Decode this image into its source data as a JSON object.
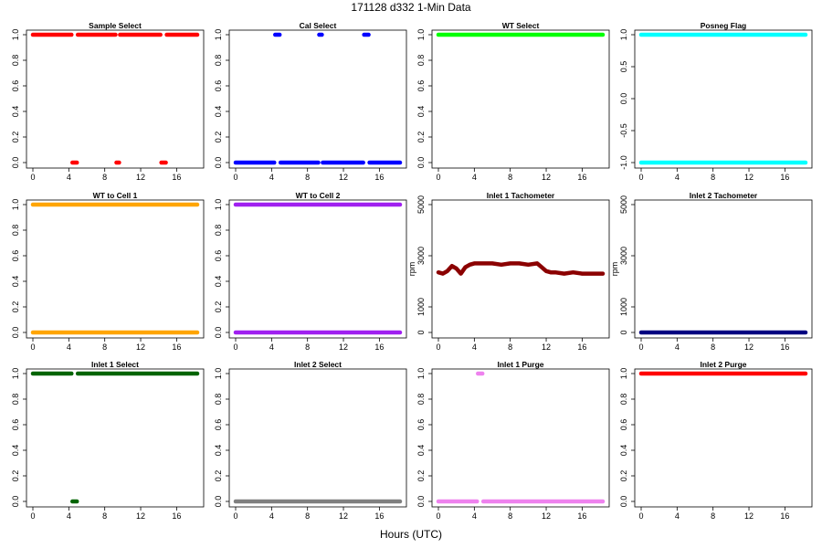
{
  "page": {
    "title": "171128   d332   1-Min Data",
    "xlabel": "Hours (UTC)"
  },
  "colors": {
    "red": "#ff0000",
    "blue": "#0000ff",
    "green": "#00ff00",
    "cyan": "#00ffff",
    "orange": "#ffa500",
    "purple": "#a020f0",
    "darkred": "#8b0000",
    "navy": "#000080",
    "darkgreen": "#006400",
    "gray": "#808080",
    "violet": "#ee82ee"
  },
  "chart_data": [
    {
      "type": "scatter",
      "title": "Sample Select",
      "color": "#ff0000",
      "xlim": [
        0,
        18.3
      ],
      "xticks": [
        0,
        4,
        8,
        12,
        16
      ],
      "ylim": [
        0,
        1
      ],
      "yticks": [
        0,
        0.2,
        0.4,
        0.6,
        0.8,
        1.0
      ],
      "ytick_labels": [
        "0.0",
        "0.2",
        "0.4",
        "0.6",
        "0.8",
        "1.0"
      ],
      "segments": [
        {
          "y": 1,
          "x": [
            0,
            4.3
          ]
        },
        {
          "y": 0,
          "x": [
            4.4,
            4.9
          ]
        },
        {
          "y": 1,
          "x": [
            5.0,
            9.2
          ]
        },
        {
          "y": 0,
          "x": [
            9.3,
            9.6
          ]
        },
        {
          "y": 1,
          "x": [
            9.7,
            14.2
          ]
        },
        {
          "y": 0,
          "x": [
            14.3,
            14.8
          ]
        },
        {
          "y": 1,
          "x": [
            14.9,
            18.3
          ]
        }
      ]
    },
    {
      "type": "scatter",
      "title": "Cal Select",
      "color": "#0000ff",
      "xlim": [
        0,
        18.3
      ],
      "xticks": [
        0,
        4,
        8,
        12,
        16
      ],
      "ylim": [
        0,
        1
      ],
      "yticks": [
        0,
        0.2,
        0.4,
        0.6,
        0.8,
        1.0
      ],
      "ytick_labels": [
        "0.0",
        "0.2",
        "0.4",
        "0.6",
        "0.8",
        "1.0"
      ],
      "segments": [
        {
          "y": 0,
          "x": [
            0,
            4.3
          ]
        },
        {
          "y": 1,
          "x": [
            4.4,
            4.9
          ]
        },
        {
          "y": 0,
          "x": [
            5.0,
            9.2
          ]
        },
        {
          "y": 1,
          "x": [
            9.3,
            9.6
          ]
        },
        {
          "y": 0,
          "x": [
            9.7,
            14.2
          ]
        },
        {
          "y": 1,
          "x": [
            14.3,
            14.8
          ]
        },
        {
          "y": 0,
          "x": [
            14.9,
            18.3
          ]
        }
      ]
    },
    {
      "type": "scatter",
      "title": "WT Select",
      "color": "#00ff00",
      "xlim": [
        0,
        18.3
      ],
      "xticks": [
        0,
        4,
        8,
        12,
        16
      ],
      "ylim": [
        0,
        1
      ],
      "yticks": [
        0,
        0.2,
        0.4,
        0.6,
        0.8,
        1.0
      ],
      "ytick_labels": [
        "0.0",
        "0.2",
        "0.4",
        "0.6",
        "0.8",
        "1.0"
      ],
      "segments": [
        {
          "y": 1,
          "x": [
            0,
            18.3
          ]
        }
      ]
    },
    {
      "type": "scatter",
      "title": "Posneg Flag",
      "color": "#00ffff",
      "xlim": [
        0,
        18.3
      ],
      "xticks": [
        0,
        4,
        8,
        12,
        16
      ],
      "ylim": [
        -1,
        1
      ],
      "yticks": [
        -1,
        -0.5,
        0,
        0.5,
        1
      ],
      "ytick_labels": [
        "-1.0",
        "-0.5",
        "0.0",
        "0.5",
        "1.0"
      ],
      "segments": [
        {
          "y": 1,
          "x": [
            0,
            18.3
          ]
        },
        {
          "y": -1,
          "x": [
            0,
            18.3
          ]
        }
      ]
    },
    {
      "type": "scatter",
      "title": "WT to Cell 1",
      "color": "#ffa500",
      "xlim": [
        0,
        18.3
      ],
      "xticks": [
        0,
        4,
        8,
        12,
        16
      ],
      "ylim": [
        0,
        1
      ],
      "yticks": [
        0,
        0.2,
        0.4,
        0.6,
        0.8,
        1.0
      ],
      "ytick_labels": [
        "0.0",
        "0.2",
        "0.4",
        "0.6",
        "0.8",
        "1.0"
      ],
      "segments": [
        {
          "y": 1,
          "x": [
            0,
            18.3
          ]
        },
        {
          "y": 0,
          "x": [
            0,
            18.3
          ]
        }
      ]
    },
    {
      "type": "scatter",
      "title": "WT to Cell 2",
      "color": "#a020f0",
      "xlim": [
        0,
        18.3
      ],
      "xticks": [
        0,
        4,
        8,
        12,
        16
      ],
      "ylim": [
        0,
        1
      ],
      "yticks": [
        0,
        0.2,
        0.4,
        0.6,
        0.8,
        1.0
      ],
      "ytick_labels": [
        "0.0",
        "0.2",
        "0.4",
        "0.6",
        "0.8",
        "1.0"
      ],
      "segments": [
        {
          "y": 1,
          "x": [
            0,
            18.3
          ]
        },
        {
          "y": 0,
          "x": [
            0,
            18.3
          ]
        }
      ]
    },
    {
      "type": "scatter",
      "title": "Inlet 1 Tachometer",
      "ylabel": "rpm",
      "color": "#8b0000",
      "xlim": [
        0,
        18.3
      ],
      "xticks": [
        0,
        4,
        8,
        12,
        16
      ],
      "ylim": [
        0,
        5000
      ],
      "yticks": [
        0,
        1000,
        3000,
        5000
      ],
      "ytick_labels": [
        "0",
        "1000",
        "3000",
        "5000"
      ],
      "line": {
        "x": [
          0,
          0.5,
          1,
          1.5,
          2,
          2.5,
          3,
          3.5,
          4,
          5,
          6,
          7,
          8,
          9,
          10,
          11,
          11.5,
          12,
          12.5,
          13,
          14,
          15,
          16,
          17,
          18,
          18.3
        ],
        "y": [
          2350,
          2300,
          2400,
          2600,
          2500,
          2300,
          2550,
          2650,
          2700,
          2700,
          2700,
          2650,
          2700,
          2700,
          2650,
          2700,
          2550,
          2400,
          2350,
          2350,
          2300,
          2350,
          2300,
          2300,
          2300,
          2300
        ]
      }
    },
    {
      "type": "scatter",
      "title": "Inlet 2 Tachometer",
      "ylabel": "rpm",
      "color": "#000080",
      "xlim": [
        0,
        18.3
      ],
      "xticks": [
        0,
        4,
        8,
        12,
        16
      ],
      "ylim": [
        0,
        5000
      ],
      "yticks": [
        0,
        1000,
        3000,
        5000
      ],
      "ytick_labels": [
        "0",
        "1000",
        "3000",
        "5000"
      ],
      "segments": [
        {
          "y": 0,
          "x": [
            0,
            18.3
          ]
        }
      ]
    },
    {
      "type": "scatter",
      "title": "Inlet 1 Select",
      "color": "#006400",
      "xlim": [
        0,
        18.3
      ],
      "xticks": [
        0,
        4,
        8,
        12,
        16
      ],
      "ylim": [
        0,
        1
      ],
      "yticks": [
        0,
        0.2,
        0.4,
        0.6,
        0.8,
        1.0
      ],
      "ytick_labels": [
        "0.0",
        "0.2",
        "0.4",
        "0.6",
        "0.8",
        "1.0"
      ],
      "segments": [
        {
          "y": 1,
          "x": [
            0,
            4.3
          ]
        },
        {
          "y": 0,
          "x": [
            4.4,
            4.9
          ]
        },
        {
          "y": 1,
          "x": [
            5.0,
            18.3
          ]
        }
      ]
    },
    {
      "type": "scatter",
      "title": "Inlet 2 Select",
      "color": "#808080",
      "xlim": [
        0,
        18.3
      ],
      "xticks": [
        0,
        4,
        8,
        12,
        16
      ],
      "ylim": [
        0,
        1
      ],
      "yticks": [
        0,
        0.2,
        0.4,
        0.6,
        0.8,
        1.0
      ],
      "ytick_labels": [
        "0.0",
        "0.2",
        "0.4",
        "0.6",
        "0.8",
        "1.0"
      ],
      "segments": [
        {
          "y": 0,
          "x": [
            0,
            18.3
          ]
        }
      ]
    },
    {
      "type": "scatter",
      "title": "Inlet 1 Purge",
      "color": "#ee82ee",
      "xlim": [
        0,
        18.3
      ],
      "xticks": [
        0,
        4,
        8,
        12,
        16
      ],
      "ylim": [
        0,
        1
      ],
      "yticks": [
        0,
        0.2,
        0.4,
        0.6,
        0.8,
        1.0
      ],
      "ytick_labels": [
        "0.0",
        "0.2",
        "0.4",
        "0.6",
        "0.8",
        "1.0"
      ],
      "segments": [
        {
          "y": 0,
          "x": [
            0,
            4.3
          ]
        },
        {
          "y": 1,
          "x": [
            4.4,
            4.9
          ]
        },
        {
          "y": 0,
          "x": [
            5.0,
            18.3
          ]
        }
      ]
    },
    {
      "type": "scatter",
      "title": "Inlet 2 Purge",
      "color": "#ff0000",
      "xlim": [
        0,
        18.3
      ],
      "xticks": [
        0,
        4,
        8,
        12,
        16
      ],
      "ylim": [
        0,
        1
      ],
      "yticks": [
        0,
        0.2,
        0.4,
        0.6,
        0.8,
        1.0
      ],
      "ytick_labels": [
        "0.0",
        "0.2",
        "0.4",
        "0.6",
        "0.8",
        "1.0"
      ],
      "segments": [
        {
          "y": 1,
          "x": [
            0,
            18.3
          ]
        }
      ]
    }
  ]
}
